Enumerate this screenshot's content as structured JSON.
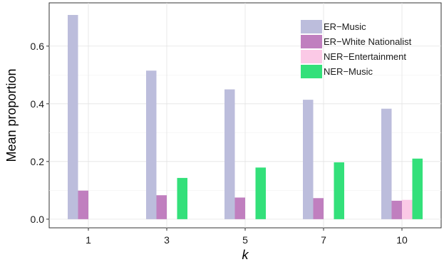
{
  "chart_data": {
    "type": "bar",
    "categories": [
      "1",
      "3",
      "5",
      "7",
      "10"
    ],
    "xlabel": "k",
    "ylabel": "Mean proportion",
    "ylim": [
      -0.03,
      0.75
    ],
    "yticks": [
      0.0,
      0.2,
      0.4,
      0.6
    ],
    "ytick_labels": [
      "0.0",
      "0.2",
      "0.4",
      "0.6"
    ],
    "grid": true,
    "legend_position": "top-right",
    "series": [
      {
        "name": "ER−Music",
        "color": "#bcbddc",
        "values": [
          0.708,
          0.515,
          0.45,
          0.414,
          0.383
        ]
      },
      {
        "name": "ER−White Nationalist",
        "color": "#c07fbf",
        "values": [
          0.099,
          0.083,
          0.075,
          0.073,
          0.064
        ]
      },
      {
        "name": "NER−Entertainment",
        "color": "#fbc9e6",
        "values": [
          0,
          0,
          0,
          0,
          0.067
        ]
      },
      {
        "name": "NER−Music",
        "color": "#33e07a",
        "values": [
          0,
          0.143,
          0.179,
          0.197,
          0.21
        ]
      }
    ]
  }
}
